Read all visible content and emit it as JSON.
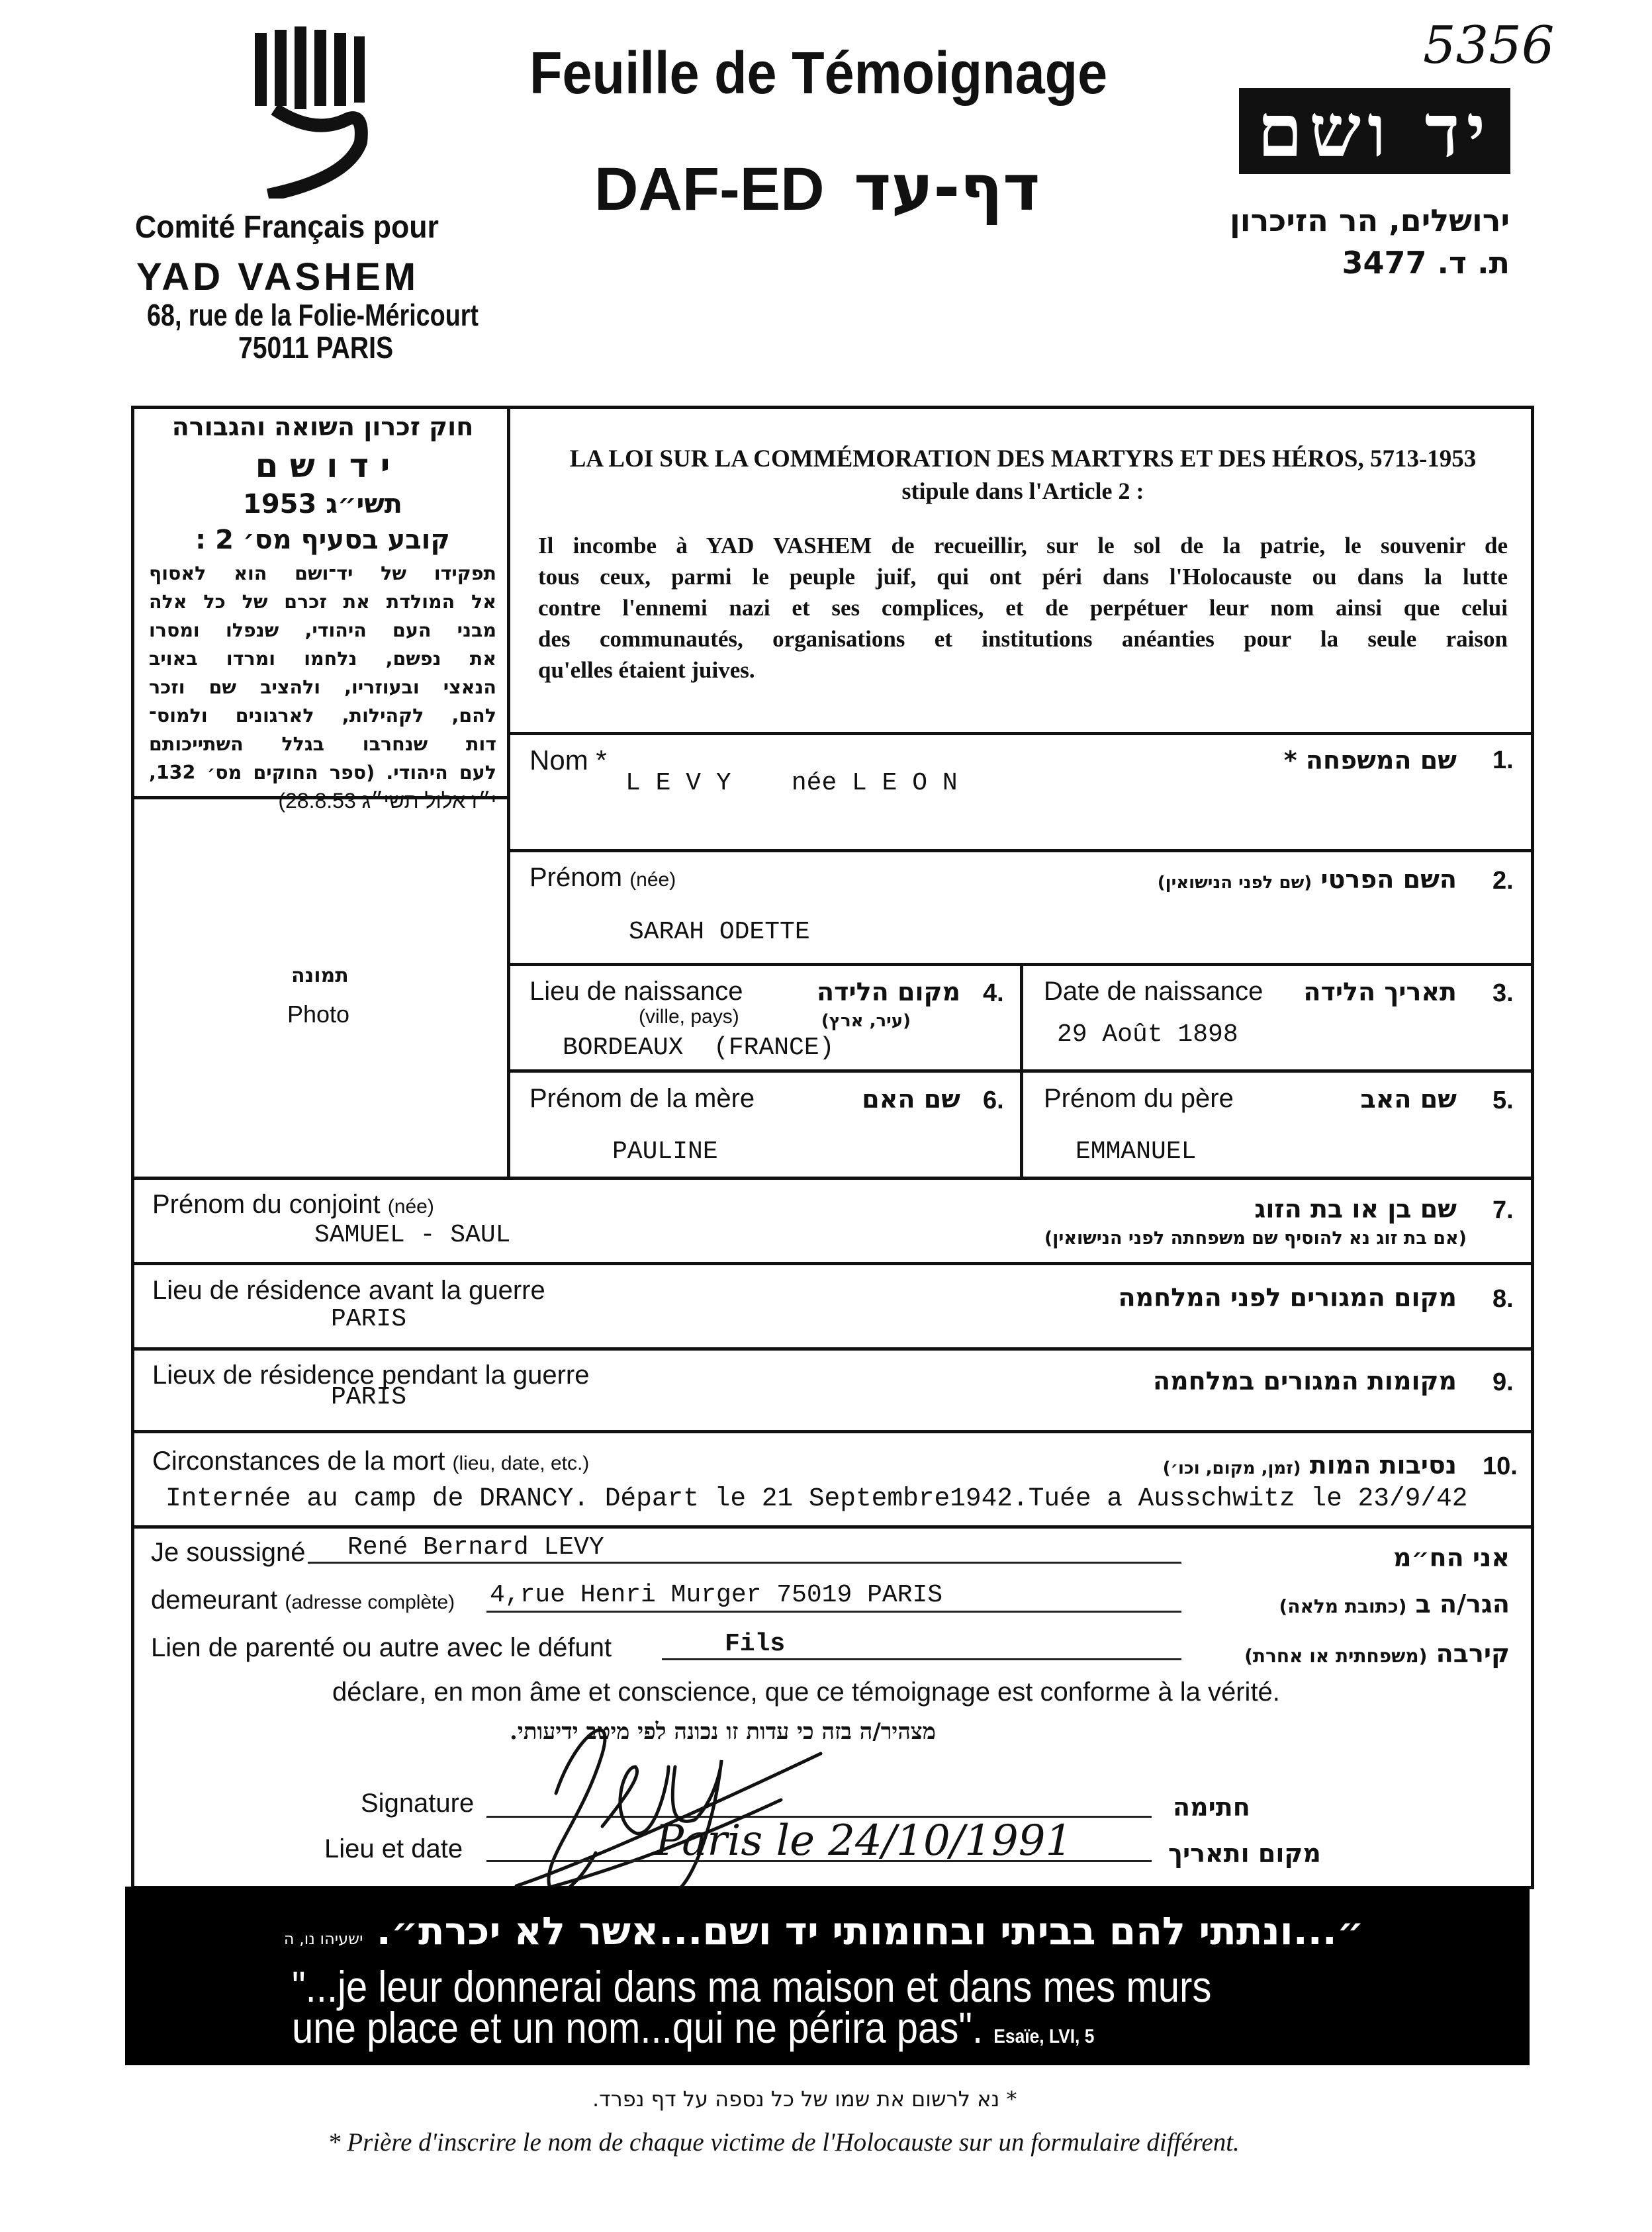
{
  "header": {
    "org_fr": [
      "Comité Français pour",
      "YAD VASHEM",
      "68, rue de la Folie-Méricourt",
      "75011 PARIS"
    ],
    "title": "Feuille de Témoignage",
    "subtitle_latin": "DAF-ED",
    "subtitle_hebrew": "דף-עד",
    "archive_number": "5356",
    "logo_text": "יד ושם",
    "address_he": [
      "ירושלים, הר הזיכרון",
      "ת. ד. 3477"
    ]
  },
  "law_hebrew": [
    "חוק זכרון השואה והגבורה",
    "י ד  ו ש ם",
    "תשי״ג 1953",
    "קובע בסעיף מס׳ 2 :",
    "תפקידו של יד־ושם הוא לאסוף",
    "אל המולדת את זכרם של כל אלה",
    "מבני העם היהודי, שנפלו ומסרו",
    "את נפשם, נלחמו ומרדו באויב",
    "הנאצי ובעוזריו, ולהציב שם וזכר",
    "להם, לקהילות, לארגונים ולמוס־",
    "דות שנחרבו בגלל השתייכותם",
    "לעם היהודי. (ספר החוקים מס׳ 132,",
    "י״ז אלול תשי״ג 28.8.53)"
  ],
  "law_fr": {
    "title": "LA LOI SUR LA COMMÉMORATION DES MARTYRS ET DES HÉROS, 5713-1953",
    "subtitle": "stipule dans l'Article 2 :",
    "lines": [
      "Il incombe à YAD VASHEM de recueillir, sur le sol de la patrie, le souvenir de",
      "tous ceux, parmi le peuple juif, qui ont péri dans l'Holocauste ou dans la lutte",
      "contre l'ennemi nazi et ses complices, et de perpétuer leur nom ainsi que celui",
      "des communautés, organisations et institutions anéanties pour la seule raison",
      "qu'elles étaient juives."
    ]
  },
  "photo": {
    "label_he": "תמונה",
    "label_fr": "Photo"
  },
  "fields": {
    "f1": {
      "label_fr": "Nom *",
      "label_he": "שם המשפחה *",
      "num": "1.",
      "value": "L E V Y    née L E O N"
    },
    "f2": {
      "label_fr": "Prénom",
      "label_fr_note": "(née)",
      "label_he": "השם הפרטי",
      "label_he_note": "(שם לפני הנישואין)",
      "num": "2.",
      "value": "SARAH ODETTE"
    },
    "f3": {
      "label_fr": "Date de naissance",
      "label_he": "תאריך הלידה",
      "num": "3.",
      "value": "29 Août 1898"
    },
    "f4": {
      "label_fr": "Lieu de naissance",
      "label_fr_note": "(ville, pays)",
      "label_he": "מקום הלידה",
      "label_he_note": "(עיר, ארץ)",
      "num": "4.",
      "value": "BORDEAUX  (FRANCE)"
    },
    "f5": {
      "label_fr": "Prénom du père",
      "label_he": "שם האב",
      "num": "5.",
      "value": "EMMANUEL"
    },
    "f6": {
      "label_fr": "Prénom de la mère",
      "label_he": "שם האם",
      "num": "6.",
      "value": "PAULINE"
    },
    "f7": {
      "label_fr": "Prénom du conjoint",
      "label_fr_note": "(née)",
      "label_he": "שם בן או בת הזוג",
      "label_he_note": "(אם בת זוג נא להוסיף שם משפחתה לפני הנישואין)",
      "num": "7.",
      "value": "SAMUEL - SAUL"
    },
    "f8": {
      "label_fr": "Lieu de résidence avant la guerre",
      "label_he": "מקום המגורים לפני המלחמה",
      "num": "8.",
      "value": "PARIS"
    },
    "f9": {
      "label_fr": "Lieux de résidence pendant la guerre",
      "label_he": "מקומות המגורים במלחמה",
      "num": "9.",
      "value": "PARIS"
    },
    "f10": {
      "label_fr": "Circonstances de la mort",
      "label_fr_note": "(lieu, date, etc.)",
      "label_he": "נסיבות המות",
      "label_he_note": "(זמן, מקום, וכו׳)",
      "num": "10.",
      "value": "Internée au camp de DRANCY. Départ le 21 Septembre1942.Tuée a Ausschwitz le 23/9/42"
    }
  },
  "declaration": {
    "undersigned_label": "Je soussigné",
    "undersigned_he": "אני הח״מ",
    "undersigned_value": "René Bernard LEVY",
    "address_label": "demeurant",
    "address_note": "(adresse complète)",
    "address_he": "הגר/ה ב",
    "address_he_note": "(כתובת מלאה)",
    "address_value": "4,rue Henri Murger 75019 PARIS",
    "relation_label": "Lien de parenté ou autre avec le défunt",
    "relation_he": "קירבה",
    "relation_he_note": "(משפחתית או אחרת)",
    "relation_value": "Fils",
    "statement_fr": "déclare, en mon âme et conscience, que ce témoignage est conforme à la vérité.",
    "statement_he": "מצהיר/ה בזה כי עדות זו נכונה לפי מיטב ידיעותי.",
    "signature_label": "Signature",
    "signature_he": "חתימה",
    "signature": "Levy",
    "place_date_label": "Lieu et date",
    "place_date_he": "מקום ותאריך",
    "place_date_value": "Paris le 24/10/1991"
  },
  "banner": {
    "quote_he": "״...ונתתי להם בביתי ובחומותי יד ושם...אשר לא יכרת״.",
    "source_he": "ישעיהו נו, ה",
    "quote_fr_1": "\"...je leur donnerai dans ma maison et dans mes murs",
    "quote_fr_2": "une place et un nom...qui ne périra pas\".",
    "source_fr": "Esaïe, LVI, 5"
  },
  "footnote": {
    "he": "* נא לרשום את שמו של כל נספה על דף נפרד.",
    "fr": "* Prière d'inscrire le nom de chaque victime de l'Holocauste sur un formulaire différent."
  }
}
